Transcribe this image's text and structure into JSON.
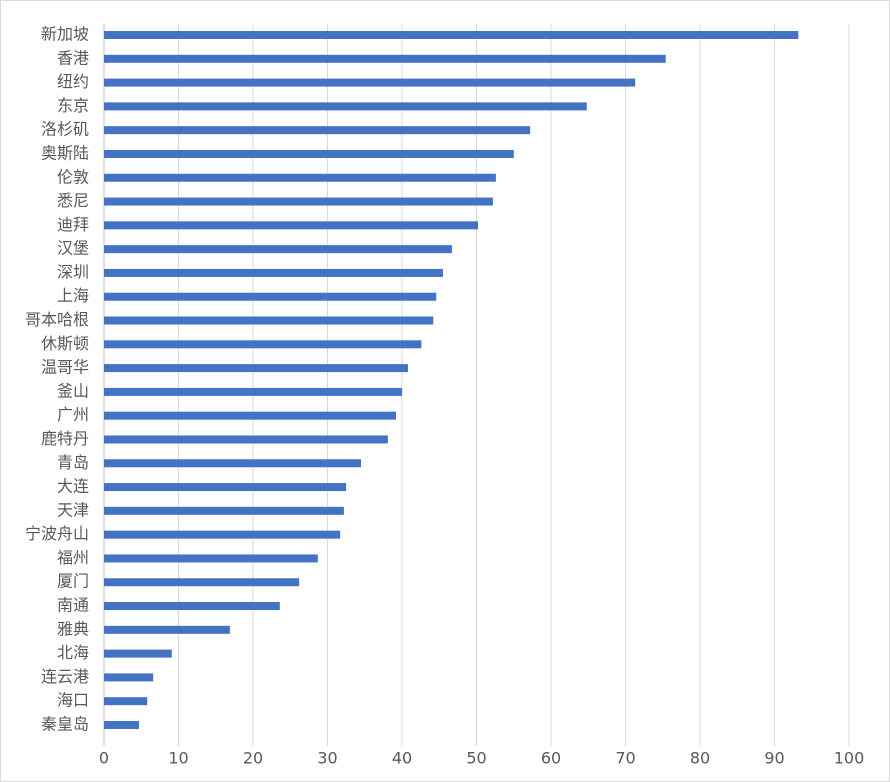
{
  "chart_data": {
    "type": "barh",
    "categories": [
      "新加坡",
      "香港",
      "纽约",
      "东京",
      "洛杉矶",
      "奥斯陆",
      "伦敦",
      "悉尼",
      "迪拜",
      "汉堡",
      "深圳",
      "上海",
      "哥本哈根",
      "休斯顿",
      "温哥华",
      "釜山",
      "广州",
      "鹿特丹",
      "青岛",
      "大连",
      "天津",
      "宁波舟山",
      "福州",
      "厦门",
      "南通",
      "雅典",
      "北海",
      "连云港",
      "海口",
      "秦皇岛"
    ],
    "values": [
      93.2,
      75.4,
      71.3,
      64.8,
      57.2,
      55.0,
      52.6,
      52.2,
      50.2,
      46.7,
      45.5,
      44.6,
      44.2,
      42.6,
      40.8,
      40.0,
      39.2,
      38.1,
      34.5,
      32.5,
      32.2,
      31.7,
      28.7,
      26.2,
      23.6,
      16.9,
      9.1,
      6.6,
      5.8,
      4.7
    ],
    "color": "#4472c4",
    "xlim": [
      0,
      100
    ],
    "xticks": [
      0,
      10,
      20,
      30,
      40,
      50,
      60,
      70,
      80,
      90,
      100
    ],
    "grid": true
  }
}
